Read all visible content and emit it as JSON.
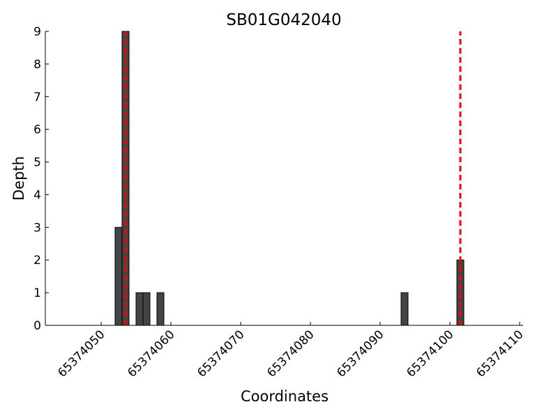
{
  "chart_data": {
    "type": "bar",
    "title": "SB01G042040",
    "xlabel": "Coordinates",
    "ylabel": "Depth",
    "x": [
      65374052,
      65374053,
      65374055,
      65374056,
      65374058,
      65374093,
      65374101
    ],
    "values": [
      3,
      9,
      1,
      1,
      1,
      1,
      2
    ],
    "bar_width": 1,
    "color": "#444444",
    "vlines": [
      65374053.5,
      65374101.5
    ],
    "vline_color": "#ff0000",
    "xlim": [
      65374042,
      65374110.5
    ],
    "ylim": [
      0,
      9
    ],
    "xticks": [
      65374050,
      65374060,
      65374070,
      65374080,
      65374090,
      65374100,
      65374110
    ],
    "yticks": [
      0,
      1,
      2,
      3,
      4,
      5,
      6,
      7,
      8,
      9
    ]
  }
}
